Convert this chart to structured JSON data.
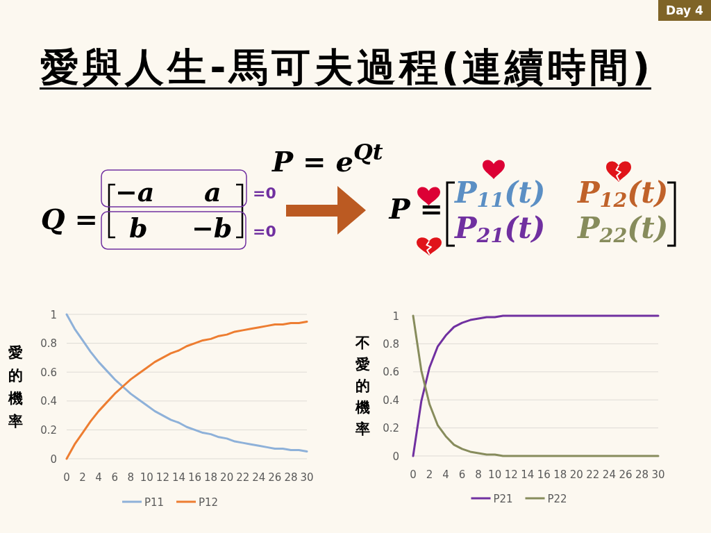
{
  "chart_data": [
    {
      "type": "other",
      "title": "愛與人生-馬可夫過程(連續時間)",
      "annotations": [
        "Day 4",
        "P = e$^{Qt}$",
        "Q =",
        "−a",
        "a",
        "b",
        "−b",
        "=0",
        "=0",
        "P =",
        "P$_{11}$(t)",
        "P$_{12}$(t)",
        "P$_{21}$(t)",
        "P$_{22}$(t)"
      ]
    },
    {
      "type": "line",
      "ylabel": "愛的機率",
      "x": [
        0,
        1,
        2,
        3,
        4,
        5,
        6,
        7,
        8,
        9,
        10,
        11,
        12,
        13,
        14,
        15,
        16,
        17,
        18,
        19,
        20,
        21,
        22,
        23,
        24,
        25,
        26,
        27,
        28,
        29,
        30
      ],
      "xlim": [
        0,
        30
      ],
      "xticks": [
        0,
        2,
        4,
        6,
        8,
        10,
        12,
        14,
        16,
        18,
        20,
        22,
        24,
        26,
        28,
        30
      ],
      "ylim": [
        0,
        1
      ],
      "yticks": [
        0,
        0.2,
        0.4,
        0.6,
        0.8,
        1
      ],
      "grid": "y",
      "legend": "bottom",
      "series": [
        {
          "name": "P11",
          "color": "#8eb1d9",
          "values": [
            1,
            0.9,
            0.82,
            0.74,
            0.67,
            0.61,
            0.55,
            0.5,
            0.45,
            0.41,
            0.37,
            0.33,
            0.3,
            0.27,
            0.25,
            0.22,
            0.2,
            0.18,
            0.17,
            0.15,
            0.14,
            0.12,
            0.11,
            0.1,
            0.09,
            0.08,
            0.07,
            0.07,
            0.06,
            0.06,
            0.05
          ]
        },
        {
          "name": "P12",
          "color": "#ed7d31",
          "values": [
            0,
            0.1,
            0.18,
            0.26,
            0.33,
            0.39,
            0.45,
            0.5,
            0.55,
            0.59,
            0.63,
            0.67,
            0.7,
            0.73,
            0.75,
            0.78,
            0.8,
            0.82,
            0.83,
            0.85,
            0.86,
            0.88,
            0.89,
            0.9,
            0.91,
            0.92,
            0.93,
            0.93,
            0.94,
            0.94,
            0.95
          ]
        }
      ]
    },
    {
      "type": "line",
      "ylabel": "不愛的機率",
      "x": [
        0,
        1,
        2,
        3,
        4,
        5,
        6,
        7,
        8,
        9,
        10,
        11,
        12,
        13,
        14,
        15,
        16,
        17,
        18,
        19,
        20,
        21,
        22,
        23,
        24,
        25,
        26,
        27,
        28,
        29,
        30
      ],
      "xlim": [
        0,
        30
      ],
      "xticks": [
        0,
        2,
        4,
        6,
        8,
        10,
        12,
        14,
        16,
        18,
        20,
        22,
        24,
        26,
        28,
        30
      ],
      "ylim": [
        0,
        1
      ],
      "yticks": [
        0,
        0.2,
        0.4,
        0.6,
        0.8,
        1
      ],
      "grid": "y",
      "legend": "bottom",
      "series": [
        {
          "name": "P21",
          "color": "#7030a0",
          "values": [
            0,
            0.39,
            0.63,
            0.78,
            0.86,
            0.92,
            0.95,
            0.97,
            0.98,
            0.99,
            0.99,
            1,
            1,
            1,
            1,
            1,
            1,
            1,
            1,
            1,
            1,
            1,
            1,
            1,
            1,
            1,
            1,
            1,
            1,
            1,
            1
          ]
        },
        {
          "name": "P22",
          "color": "#878c5c",
          "values": [
            1,
            0.61,
            0.37,
            0.22,
            0.14,
            0.08,
            0.05,
            0.03,
            0.02,
            0.01,
            0.01,
            0,
            0,
            0,
            0,
            0,
            0,
            0,
            0,
            0,
            0,
            0,
            0,
            0,
            0,
            0,
            0,
            0,
            0,
            0,
            0
          ]
        }
      ]
    }
  ]
}
